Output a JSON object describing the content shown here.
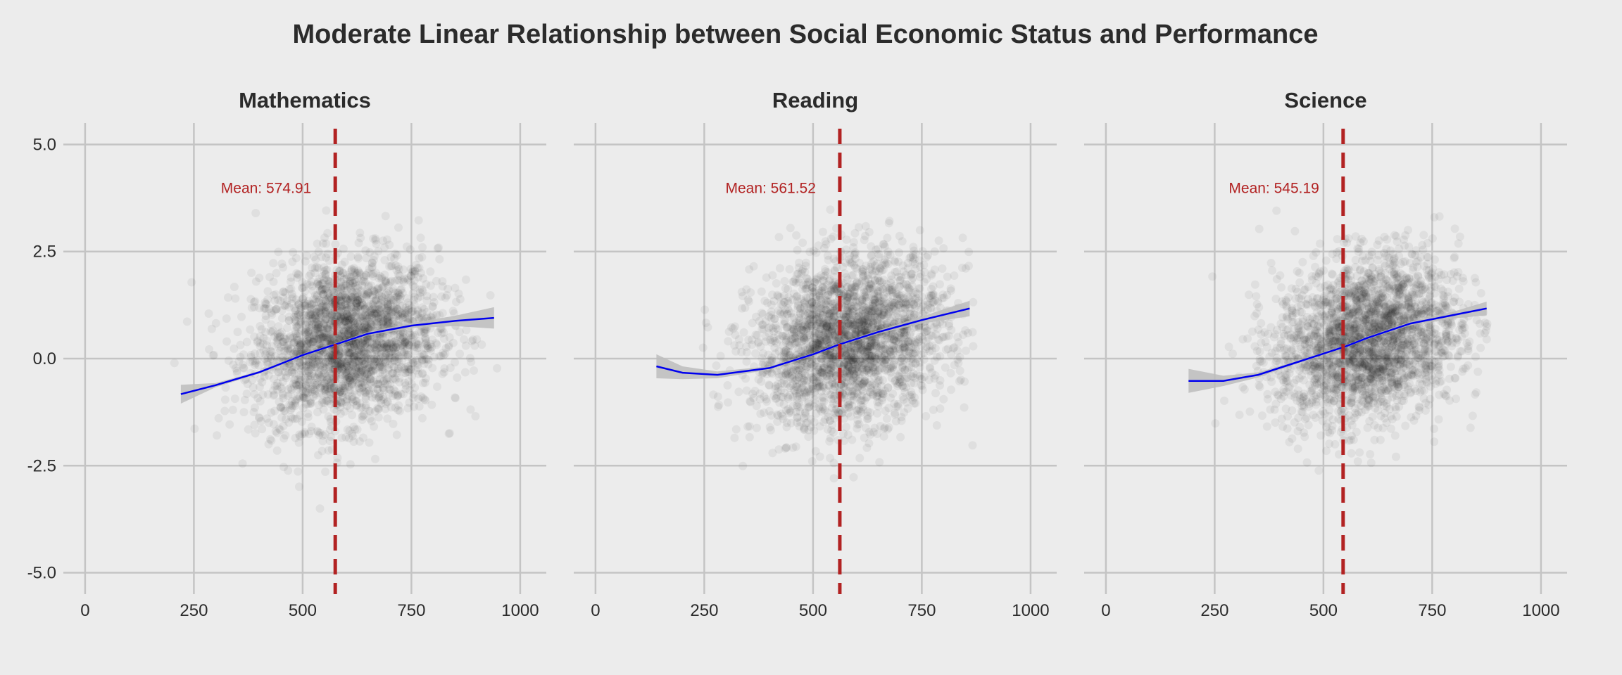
{
  "title": "Moderate Linear Relationship between Social Economic Status and Performance",
  "chart_data": {
    "type": "scatter",
    "title": "Moderate Linear Relationship between Social Economic Status and Performance",
    "xlabel": "",
    "ylabel": "",
    "xlim": [
      -50,
      1060
    ],
    "ylim": [
      -5.5,
      5.5
    ],
    "x_ticks": [
      0,
      250,
      500,
      750,
      1000
    ],
    "y_ticks": [
      5.0,
      2.5,
      0.0,
      -2.5,
      -5.0
    ],
    "y_tick_labels": [
      "5.0",
      "2.5",
      "0.0",
      "-2.5",
      "-5.0"
    ],
    "x_tick_labels": [
      "0",
      "250",
      "500",
      "750",
      "1000"
    ],
    "grid": true,
    "point_color": "#000000",
    "smooth_color": "#0000ee",
    "band_color": "#bdbdbd",
    "mean_line_color": "#b22222",
    "background": "#ececec",
    "panels": [
      {
        "name": "Mathematics",
        "mean": 574.91,
        "mean_label": "Mean: 574.91",
        "cloud_center": [
          600,
          0.45
        ],
        "cloud_spread": [
          105,
          0.95
        ],
        "x_range": [
          220,
          940
        ],
        "smooth": [
          [
            220,
            -0.83
          ],
          [
            300,
            -0.62
          ],
          [
            400,
            -0.32
          ],
          [
            500,
            0.08
          ],
          [
            575,
            0.33
          ],
          [
            650,
            0.58
          ],
          [
            750,
            0.77
          ],
          [
            850,
            0.88
          ],
          [
            940,
            0.95
          ]
        ],
        "band": [
          0.22,
          0.05,
          0.03,
          0.03,
          0.03,
          0.04,
          0.06,
          0.12,
          0.25
        ]
      },
      {
        "name": "Reading",
        "mean": 561.52,
        "mean_label": "Mean: 561.52",
        "cloud_center": [
          585,
          0.45
        ],
        "cloud_spread": [
          110,
          0.95
        ],
        "x_range": [
          140,
          860
        ],
        "smooth": [
          [
            140,
            -0.18
          ],
          [
            200,
            -0.33
          ],
          [
            280,
            -0.38
          ],
          [
            400,
            -0.22
          ],
          [
            500,
            0.1
          ],
          [
            560,
            0.33
          ],
          [
            650,
            0.62
          ],
          [
            750,
            0.9
          ],
          [
            860,
            1.17
          ]
        ],
        "band": [
          0.28,
          0.15,
          0.08,
          0.04,
          0.03,
          0.03,
          0.04,
          0.08,
          0.18
        ]
      },
      {
        "name": "Science",
        "mean": 545.19,
        "mean_label": "Mean: 545.19",
        "cloud_center": [
          600,
          0.45
        ],
        "cloud_spread": [
          105,
          0.95
        ],
        "x_range": [
          190,
          875
        ],
        "smooth": [
          [
            190,
            -0.52
          ],
          [
            270,
            -0.52
          ],
          [
            350,
            -0.38
          ],
          [
            450,
            -0.05
          ],
          [
            550,
            0.28
          ],
          [
            600,
            0.48
          ],
          [
            700,
            0.82
          ],
          [
            800,
            1.02
          ],
          [
            875,
            1.17
          ]
        ],
        "band": [
          0.28,
          0.12,
          0.06,
          0.03,
          0.03,
          0.03,
          0.04,
          0.08,
          0.16
        ]
      }
    ]
  }
}
